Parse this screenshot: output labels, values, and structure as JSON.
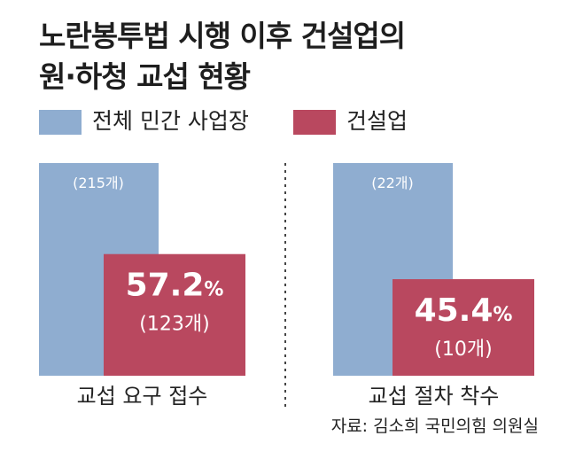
{
  "title_lines": [
    "노란봉투법 시행 이후 건설업의",
    "원·하청 교섭 현황"
  ],
  "legend": [
    {
      "label": "전체 민간 사업장",
      "color": "#8fadd0"
    },
    {
      "label": "건설업",
      "color": "#b9485f"
    }
  ],
  "source": "자료: 김소희 국민의힘 의원실",
  "colors": {
    "divider": "#444444",
    "total_count_text": "#ffffff",
    "industry_text": "#ffffff"
  },
  "chart_data": {
    "type": "bar",
    "categories": [
      "교섭 요구 접수",
      "교섭 절차 착수"
    ],
    "series": [
      {
        "name": "전체 민간 사업장",
        "values": [
          100,
          100
        ],
        "count_labels": [
          "(215개)",
          "(22개)"
        ]
      },
      {
        "name": "건설업",
        "values": [
          57.2,
          45.4
        ],
        "percent_labels": [
          "57.2%",
          "45.4%"
        ],
        "count_labels": [
          "(123개)",
          "(10개)"
        ]
      }
    ],
    "ylim": [
      0,
      100
    ],
    "xlabel": "",
    "ylabel": "",
    "grid": false,
    "legend_placement": "top-left"
  }
}
